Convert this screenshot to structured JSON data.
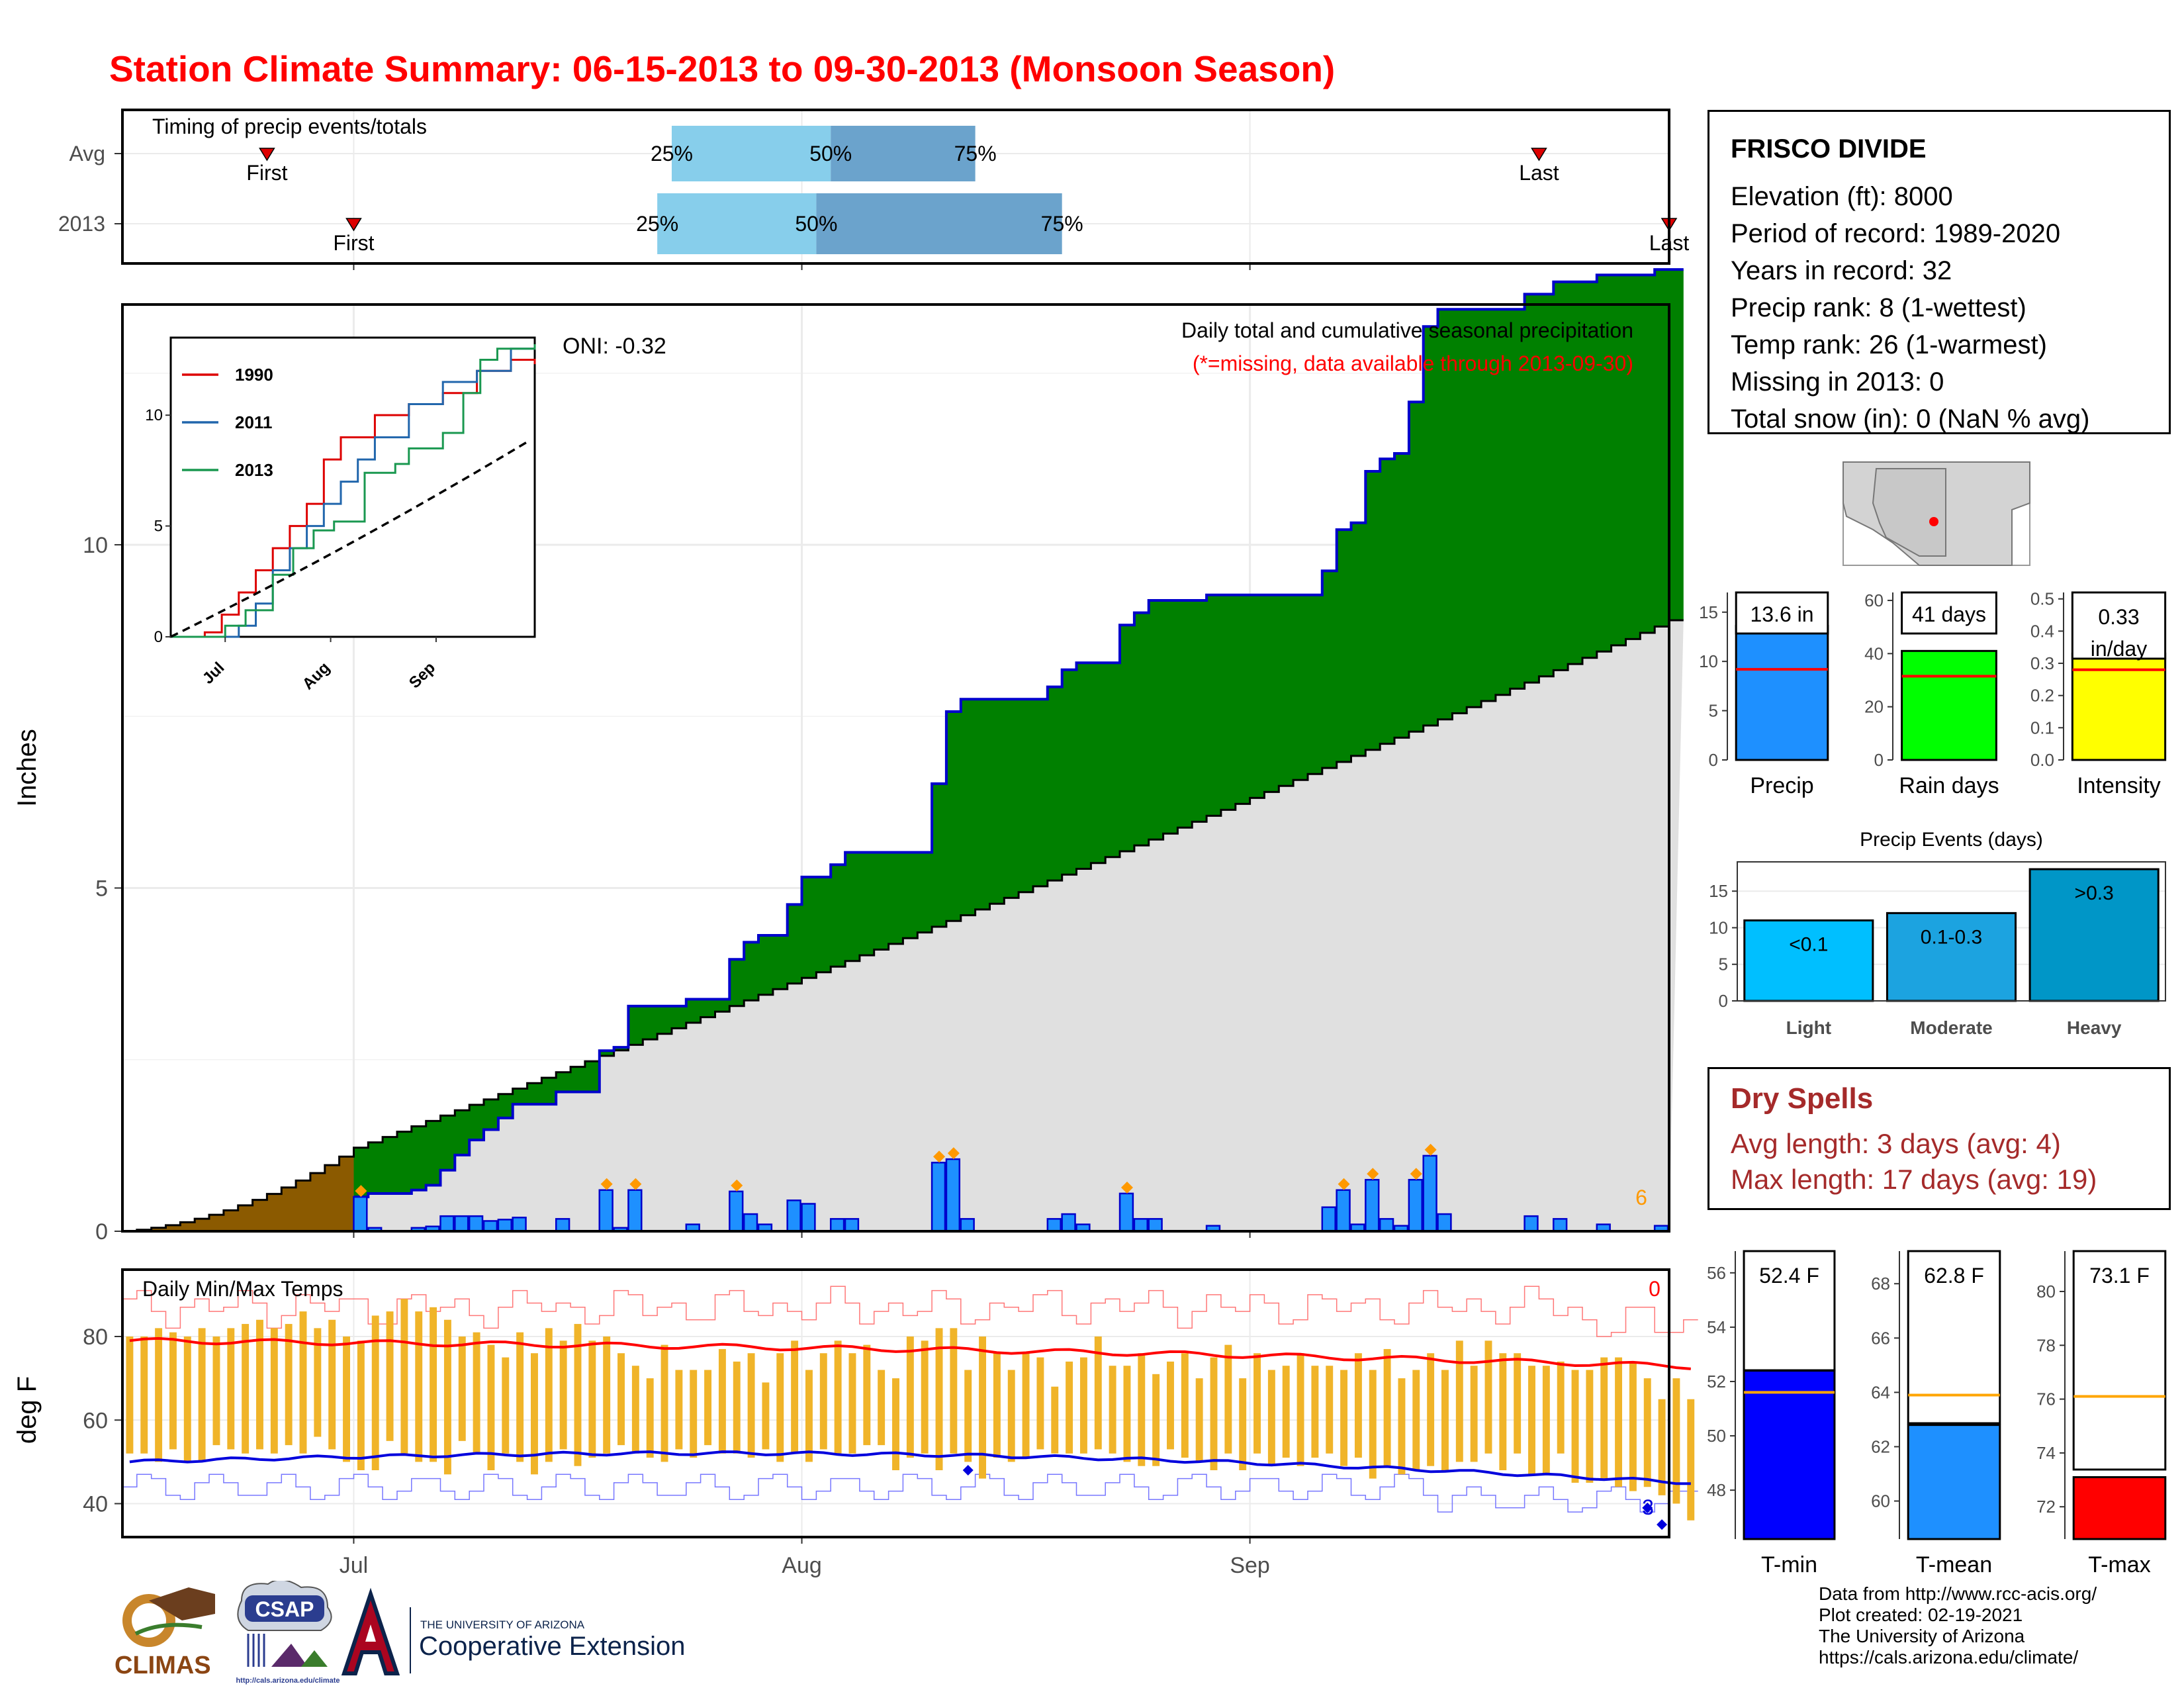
{
  "title": "Station Climate Summary: 06-15-2013 to 09-30-2013 (Monsoon Season)",
  "timing": {
    "label": "Timing of precip events/totals",
    "rows": [
      "Avg",
      "2013"
    ],
    "avg": {
      "first": "2013-06-25",
      "p25": "2013-07-23",
      "p50": "2013-08-03",
      "p75": "2013-08-13",
      "last": "2013-09-21"
    },
    "y2013": {
      "first": "2013-07-01",
      "p25": "2013-07-22",
      "p50": "2013-08-02",
      "p75": "2013-08-19",
      "last": "2013-09-30"
    },
    "labels": {
      "first": "First",
      "last": "Last",
      "p25": "25%",
      "p50": "50%",
      "p75": "75%"
    },
    "colors": {
      "light": "#87ceeb",
      "dark": "#6ba3cc",
      "marker": "#dd0000"
    }
  },
  "main_panel": {
    "ylabel": "Inches",
    "legend_line1": "Daily total and cumulative seasonal precipitation",
    "legend_line2": "(*=missing, data available through 2013-09-30)",
    "oni": "ONI: -0.32",
    "corner_count": "6",
    "yticks": [
      "0",
      "5",
      "10"
    ],
    "xticks": [
      "Jul",
      "Aug",
      "Sep"
    ]
  },
  "temp_panel": {
    "label": "Daily Min/Max Temps",
    "ylabel": "deg F",
    "yticks": [
      "40",
      "60",
      "80"
    ],
    "corner_hi": "0",
    "corner_lo": "3"
  },
  "chart_data": {
    "type": "area",
    "x_range": [
      "2013-06-15",
      "2013-09-30"
    ],
    "y_range": [
      0,
      13.5
    ],
    "daily_precip_in": [
      [
        "2013-07-01",
        0.5
      ],
      [
        "2013-07-02",
        0.05
      ],
      [
        "2013-07-05",
        0.05
      ],
      [
        "2013-07-06",
        0.07
      ],
      [
        "2013-07-07",
        0.22
      ],
      [
        "2013-07-08",
        0.22
      ],
      [
        "2013-07-09",
        0.22
      ],
      [
        "2013-07-10",
        0.15
      ],
      [
        "2013-07-11",
        0.17
      ],
      [
        "2013-07-12",
        0.2
      ],
      [
        "2013-07-15",
        0.18
      ],
      [
        "2013-07-18",
        0.6
      ],
      [
        "2013-07-19",
        0.05
      ],
      [
        "2013-07-20",
        0.6
      ],
      [
        "2013-07-24",
        0.1
      ],
      [
        "2013-07-27",
        0.58
      ],
      [
        "2013-07-28",
        0.25
      ],
      [
        "2013-07-29",
        0.1
      ],
      [
        "2013-07-31",
        0.45
      ],
      [
        "2013-08-01",
        0.4
      ],
      [
        "2013-08-03",
        0.18
      ],
      [
        "2013-08-04",
        0.18
      ],
      [
        "2013-08-10",
        1.0
      ],
      [
        "2013-08-11",
        1.05
      ],
      [
        "2013-08-12",
        0.18
      ],
      [
        "2013-08-18",
        0.18
      ],
      [
        "2013-08-19",
        0.25
      ],
      [
        "2013-08-20",
        0.1
      ],
      [
        "2013-08-23",
        0.55
      ],
      [
        "2013-08-24",
        0.18
      ],
      [
        "2013-08-25",
        0.18
      ],
      [
        "2013-08-29",
        0.08
      ],
      [
        "2013-09-06",
        0.35
      ],
      [
        "2013-09-07",
        0.6
      ],
      [
        "2013-09-08",
        0.1
      ],
      [
        "2013-09-09",
        0.75
      ],
      [
        "2013-09-10",
        0.18
      ],
      [
        "2013-09-11",
        0.08
      ],
      [
        "2013-09-12",
        0.75
      ],
      [
        "2013-09-13",
        1.1
      ],
      [
        "2013-09-14",
        0.25
      ],
      [
        "2013-09-20",
        0.22
      ],
      [
        "2013-09-22",
        0.18
      ],
      [
        "2013-09-25",
        0.1
      ],
      [
        "2013-09-29",
        0.08
      ]
    ],
    "series": [
      {
        "name": "1990",
        "color": "#dd0000",
        "points": [
          [
            0,
            0
          ],
          [
            10,
            0.2
          ],
          [
            15,
            1
          ],
          [
            20,
            2
          ],
          [
            25,
            3
          ],
          [
            30,
            4
          ],
          [
            35,
            5
          ],
          [
            40,
            6
          ],
          [
            45,
            8
          ],
          [
            50,
            9
          ],
          [
            60,
            10
          ],
          [
            70,
            10.5
          ],
          [
            80,
            11
          ],
          [
            90,
            12
          ],
          [
            100,
            12.5
          ],
          [
            107,
            12.3
          ]
        ]
      },
      {
        "name": "2011",
        "color": "#2166ac",
        "points": [
          [
            0,
            0
          ],
          [
            10,
            0
          ],
          [
            20,
            0.5
          ],
          [
            25,
            1.5
          ],
          [
            30,
            3
          ],
          [
            35,
            4
          ],
          [
            40,
            5
          ],
          [
            45,
            6
          ],
          [
            50,
            7
          ],
          [
            55,
            8
          ],
          [
            60,
            9
          ],
          [
            70,
            10.5
          ],
          [
            80,
            11.5
          ],
          [
            90,
            12
          ],
          [
            100,
            13
          ],
          [
            107,
            13.2
          ]
        ]
      },
      {
        "name": "2013",
        "color": "#1a9850",
        "points": [
          [
            0,
            0
          ],
          [
            16,
            0.5
          ],
          [
            22,
            1.2
          ],
          [
            30,
            2.8
          ],
          [
            36,
            4.0
          ],
          [
            42,
            4.8
          ],
          [
            48,
            5.2
          ],
          [
            57,
            7.4
          ],
          [
            66,
            7.8
          ],
          [
            70,
            8.5
          ],
          [
            80,
            9.2
          ],
          [
            86,
            11
          ],
          [
            91,
            12.5
          ],
          [
            96,
            13.0
          ],
          [
            107,
            13.2
          ]
        ]
      }
    ],
    "climatology_end_in": 8.9,
    "temps": {
      "avg_max_f": 72,
      "avg_min_f": 45,
      "record_high_f": 87,
      "record_low_f": 38,
      "daily_max_f": [
        80,
        80,
        82,
        81,
        80,
        82,
        80,
        82,
        83,
        84,
        82,
        83,
        86,
        82,
        84,
        80,
        79,
        85,
        86,
        89,
        86,
        87,
        84,
        80,
        81,
        78,
        75,
        81,
        76,
        82,
        79,
        83,
        79,
        80,
        76,
        73,
        70,
        78,
        72,
        72,
        72,
        77,
        74,
        76,
        69,
        76,
        79,
        72,
        76,
        79,
        76,
        78,
        72,
        70,
        80,
        79,
        82,
        82,
        72,
        80,
        76,
        72,
        76,
        75,
        68,
        74,
        75,
        80,
        73,
        73,
        76,
        71,
        74,
        76,
        70,
        75,
        78,
        70,
        76,
        72,
        73,
        76,
        73,
        73,
        72,
        76,
        72,
        77,
        70,
        72,
        76,
        72,
        79,
        73,
        79,
        76,
        76,
        73,
        73,
        74,
        72,
        72,
        75,
        75,
        74,
        70,
        65,
        70,
        65
      ],
      "daily_min_f": [
        52,
        52,
        50,
        53,
        50,
        50,
        54,
        53,
        52,
        53,
        52,
        54,
        52,
        56,
        53,
        50,
        48,
        48,
        55,
        52,
        50,
        50,
        47,
        55,
        52,
        48,
        52,
        50,
        47,
        50,
        53,
        49,
        51,
        52,
        54,
        52,
        51,
        50,
        53,
        51,
        54,
        52,
        52,
        51,
        53,
        50,
        52,
        50,
        53,
        52,
        52,
        54,
        54,
        48,
        51,
        52,
        48,
        52,
        50,
        46,
        51,
        50,
        51,
        53,
        52,
        52,
        52,
        53,
        52,
        50,
        49,
        49,
        53,
        51,
        50,
        48,
        52,
        48,
        52,
        49,
        51,
        49,
        51,
        52,
        49,
        51,
        46,
        49,
        47,
        48,
        49,
        48,
        50,
        50,
        52,
        48,
        52,
        47,
        47,
        52,
        45,
        45,
        46,
        44,
        43,
        44,
        42,
        40,
        36
      ]
    },
    "summary_bars": {
      "precip": {
        "label": "Precip",
        "value": 13.6,
        "avg": 9.2,
        "text": "13.6 in",
        "ticks": [
          "0",
          "5",
          "10",
          "15"
        ],
        "ylim": [
          0,
          17
        ],
        "color": "#1e90ff"
      },
      "rain_days": {
        "label": "Rain days",
        "value": 41,
        "avg": 31.5,
        "text": "41 days",
        "ticks": [
          "0",
          "20",
          "40",
          "60"
        ],
        "ylim": [
          0,
          63
        ],
        "color": "#00ff00"
      },
      "intensity": {
        "label": "Intensity",
        "value": 0.33,
        "avg": 0.28,
        "text": "0.33",
        "text2": "in/day",
        "ticks": [
          "0.0",
          "0.1",
          "0.2",
          "0.3",
          "0.4",
          "0.5"
        ],
        "ylim": [
          0,
          0.52
        ],
        "color": "#ffff00"
      }
    },
    "precip_events": {
      "title": "Precip Events (days)",
      "categories": [
        "Light",
        "Moderate",
        "Heavy"
      ],
      "bin_labels": [
        "<0.1",
        "0.1-0.3",
        ">0.3"
      ],
      "values": [
        11,
        12,
        18
      ],
      "ticks": [
        "0",
        "5",
        "10",
        "15"
      ],
      "ylim": [
        0,
        19
      ],
      "colors": [
        "#00bfff",
        "#1ca3e0",
        "#0096c7"
      ]
    },
    "temp_bars": {
      "tmin": {
        "label": "T-min",
        "value": 52.4,
        "avg": 51.6,
        "text": "52.4 F",
        "ticks": [
          "48",
          "50",
          "52",
          "54",
          "56"
        ],
        "ylim": [
          46.2,
          56.8
        ],
        "color": "#0000ff"
      },
      "tmean": {
        "label": "T-mean",
        "value": 62.8,
        "avg": 63.9,
        "text": "62.8 F",
        "ticks": [
          "60",
          "62",
          "64",
          "66",
          "68"
        ],
        "ylim": [
          58.6,
          69.2
        ],
        "color": "#1e90ff"
      },
      "tmax": {
        "label": "T-max",
        "value": 73.1,
        "avg": 76.1,
        "text": "73.1 F",
        "ticks": [
          "72",
          "74",
          "76",
          "78",
          "80"
        ],
        "ylim": [
          70.8,
          81.5
        ],
        "color": "#ff0000"
      }
    }
  },
  "station": {
    "name": "FRISCO DIVIDE",
    "lines": [
      "Elevation (ft): 8000",
      "Period of record: 1989-2020",
      "Years in record: 32",
      "Precip rank: 8 (1-wettest)",
      "Temp rank: 26 (1-warmest)",
      "Missing in 2013: 0",
      "Total snow (in): 0 (NaN % avg)"
    ]
  },
  "dry_spells": {
    "title": "Dry Spells",
    "avg": "Avg length: 3 days (avg: 4)",
    "max": "Max length: 17 days (avg: 19)"
  },
  "credits": [
    "Data from http://www.rcc-acis.org/",
    "Plot created: 02-19-2021",
    "The University of Arizona",
    "https://cals.arizona.edu/climate/"
  ],
  "logos": {
    "climas": "CLIMAS",
    "csap": "CSAP",
    "csap_url": "http://cals.arizona.edu/climate",
    "ua_line1": "THE UNIVERSITY OF ARIZONA",
    "ua_line2": "Cooperative Extension"
  }
}
